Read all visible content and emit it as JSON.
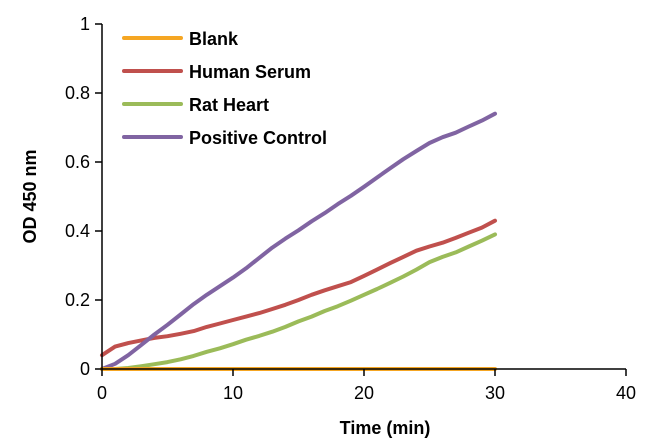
{
  "chart_data": {
    "type": "line",
    "xlabel": "Time (min)",
    "ylabel": "OD 450 nm",
    "xlim": [
      0,
      40
    ],
    "ylim": [
      0,
      1
    ],
    "xticks": [
      0,
      10,
      20,
      30,
      40
    ],
    "yticks": [
      0,
      0.2,
      0.4,
      0.6,
      0.8,
      1
    ],
    "ytick_labels": [
      "0",
      "0.2",
      "0.4",
      "0.6",
      "0.8",
      "1"
    ],
    "grid": false,
    "legend_position": "top-left",
    "series": [
      {
        "name": "Blank",
        "color": "#F5A623",
        "x": [
          0,
          5,
          10,
          15,
          20,
          25,
          30
        ],
        "values": [
          0,
          0,
          0,
          0,
          0,
          0,
          0
        ]
      },
      {
        "name": "Human Serum",
        "color": "#C0504D",
        "x": [
          0,
          1,
          2,
          3,
          4,
          5,
          6,
          7,
          8,
          9,
          10,
          11,
          12,
          13,
          14,
          15,
          16,
          17,
          18,
          19,
          20,
          21,
          22,
          23,
          24,
          25,
          26,
          27,
          28,
          29,
          30
        ],
        "values": [
          0.04,
          0.065,
          0.075,
          0.083,
          0.09,
          0.095,
          0.102,
          0.11,
          0.122,
          0.132,
          0.142,
          0.152,
          0.162,
          0.174,
          0.186,
          0.2,
          0.215,
          0.228,
          0.24,
          0.252,
          0.27,
          0.288,
          0.307,
          0.325,
          0.343,
          0.355,
          0.366,
          0.38,
          0.395,
          0.41,
          0.43
        ]
      },
      {
        "name": "Rat Heart",
        "color": "#9BBB59",
        "x": [
          0,
          1,
          2,
          3,
          4,
          5,
          6,
          7,
          8,
          9,
          10,
          11,
          12,
          13,
          14,
          15,
          16,
          17,
          18,
          19,
          20,
          21,
          22,
          23,
          24,
          25,
          26,
          27,
          28,
          29,
          30
        ],
        "values": [
          0,
          0,
          0.003,
          0.008,
          0.014,
          0.02,
          0.028,
          0.038,
          0.05,
          0.06,
          0.072,
          0.085,
          0.096,
          0.108,
          0.122,
          0.138,
          0.152,
          0.168,
          0.182,
          0.198,
          0.215,
          0.232,
          0.25,
          0.268,
          0.288,
          0.31,
          0.325,
          0.338,
          0.355,
          0.372,
          0.39
        ]
      },
      {
        "name": "Positive Control",
        "color": "#8064A2",
        "x": [
          0,
          1,
          2,
          3,
          4,
          5,
          6,
          7,
          8,
          9,
          10,
          11,
          12,
          13,
          14,
          15,
          16,
          17,
          18,
          19,
          20,
          21,
          22,
          23,
          24,
          25,
          26,
          27,
          28,
          29,
          30
        ],
        "values": [
          0,
          0.015,
          0.04,
          0.07,
          0.1,
          0.128,
          0.158,
          0.188,
          0.215,
          0.24,
          0.265,
          0.292,
          0.322,
          0.352,
          0.378,
          0.402,
          0.428,
          0.452,
          0.478,
          0.502,
          0.528,
          0.555,
          0.582,
          0.608,
          0.632,
          0.655,
          0.672,
          0.685,
          0.703,
          0.72,
          0.74
        ]
      }
    ]
  }
}
